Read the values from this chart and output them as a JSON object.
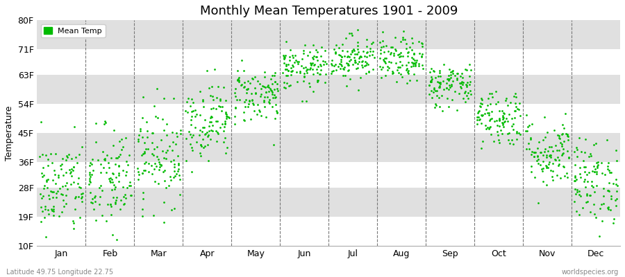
{
  "title": "Monthly Mean Temperatures 1901 - 2009",
  "ylabel": "Temperature",
  "bottom_left_label": "Latitude 49.75 Longitude 22.75",
  "bottom_right_label": "worldspecies.org",
  "dot_color": "#00bb00",
  "plot_bg_color": "#e8e8e8",
  "band_white": "#ffffff",
  "band_gray": "#e0e0e0",
  "ytick_labels": [
    "10F",
    "19F",
    "28F",
    "36F",
    "45F",
    "54F",
    "63F",
    "71F",
    "80F"
  ],
  "ytick_values": [
    10,
    19,
    28,
    36,
    45,
    54,
    63,
    71,
    80
  ],
  "month_labels": [
    "Jan",
    "Feb",
    "Mar",
    "Apr",
    "May",
    "Jun",
    "Jul",
    "Aug",
    "Sep",
    "Oct",
    "Nov",
    "Dec"
  ],
  "ylim": [
    10,
    80
  ],
  "xlim": [
    0,
    12
  ],
  "num_years": 109,
  "mean_temps_F": [
    28.0,
    30.0,
    38.0,
    49.0,
    57.0,
    65.0,
    68.5,
    67.5,
    60.0,
    50.0,
    39.0,
    30.0
  ],
  "std_temps_F": [
    7.5,
    8.5,
    7.5,
    6.0,
    4.5,
    3.5,
    3.5,
    3.5,
    3.5,
    4.5,
    5.5,
    6.5
  ]
}
